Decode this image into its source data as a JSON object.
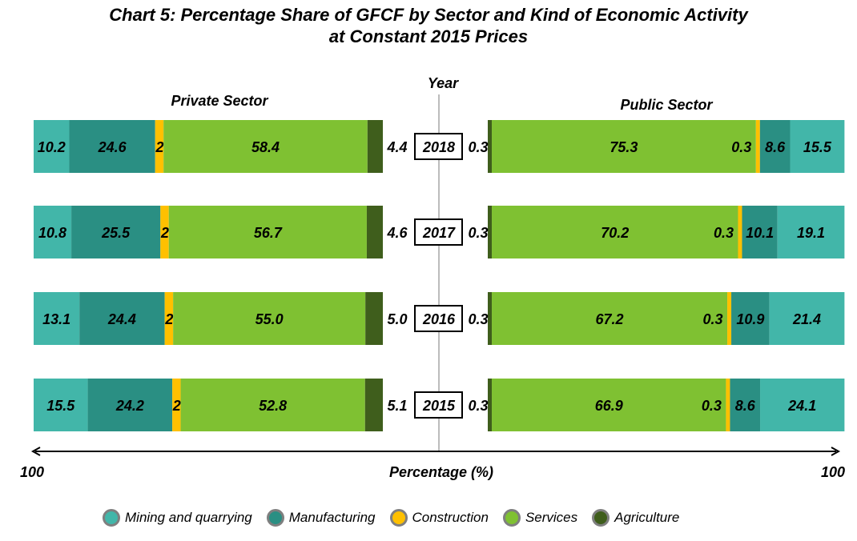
{
  "chart_data": {
    "type": "bar",
    "orientation": "horizontal-stacked-diverging",
    "title": "Chart 5: Percentage Share of GFCF by Sector and Kind of Economic Activity",
    "subtitle": "at Constant 2015 Prices",
    "xlabel": "Percentage (%)",
    "ylabel": "Year",
    "x_left_tick": "100",
    "x_right_tick": "100",
    "xlim": [
      0,
      100
    ],
    "legend_position": "bottom",
    "categories": [
      "2018",
      "2017",
      "2016",
      "2015"
    ],
    "series_names": [
      "Mining and quarrying",
      "Manufacturing",
      "Construction",
      "Services",
      "Agriculture"
    ],
    "colors": {
      "Mining and quarrying": "#42b6a9",
      "Manufacturing": "#2a8f83",
      "Construction": "#ffc000",
      "Services": "#7fc132",
      "Agriculture": "#3f5e1c"
    },
    "panels": [
      {
        "name": "Private Sector",
        "direction": "left",
        "series": [
          {
            "name": "Mining and quarrying",
            "values": [
              10.2,
              10.8,
              13.1,
              15.5
            ]
          },
          {
            "name": "Manufacturing",
            "values": [
              24.6,
              25.5,
              24.4,
              24.2
            ]
          },
          {
            "name": "Construction",
            "values": [
              2.4,
              2.4,
              2.4,
              2.4
            ]
          },
          {
            "name": "Services",
            "values": [
              58.4,
              56.7,
              55.0,
              52.8
            ]
          },
          {
            "name": "Agriculture",
            "values": [
              4.4,
              4.6,
              5.0,
              5.1
            ]
          }
        ]
      },
      {
        "name": "Public Sector",
        "direction": "right",
        "series": [
          {
            "name": "Agriculture",
            "values": [
              0.3,
              0.3,
              0.3,
              0.3
            ]
          },
          {
            "name": "Services",
            "values": [
              75.3,
              70.2,
              67.2,
              66.9
            ]
          },
          {
            "name": "Construction",
            "values": [
              0.3,
              0.3,
              0.3,
              0.3
            ]
          },
          {
            "name": "Manufacturing",
            "values": [
              8.6,
              10.1,
              10.9,
              8.6
            ]
          },
          {
            "name": "Mining and quarrying",
            "values": [
              15.5,
              19.1,
              21.4,
              24.1
            ]
          }
        ]
      }
    ]
  },
  "labels": {
    "title_line1": "Chart 5: Percentage Share of GFCF by Sector and Kind of Economic Activity",
    "title_line2": "at Constant 2015 Prices",
    "year_axis": "Year",
    "private": "Private  Sector",
    "public": "Public  Sector",
    "xlabel": "Percentage (%)",
    "left_tick": "100",
    "right_tick": "100"
  },
  "legend": [
    {
      "label": "Mining and quarrying",
      "color": "#42b6a9"
    },
    {
      "label": "Manufacturing",
      "color": "#2a8f83"
    },
    {
      "label": "Construction",
      "color": "#ffc000"
    },
    {
      "label": "Services",
      "color": "#7fc132"
    },
    {
      "label": "Agriculture",
      "color": "#3f5e1c"
    }
  ]
}
